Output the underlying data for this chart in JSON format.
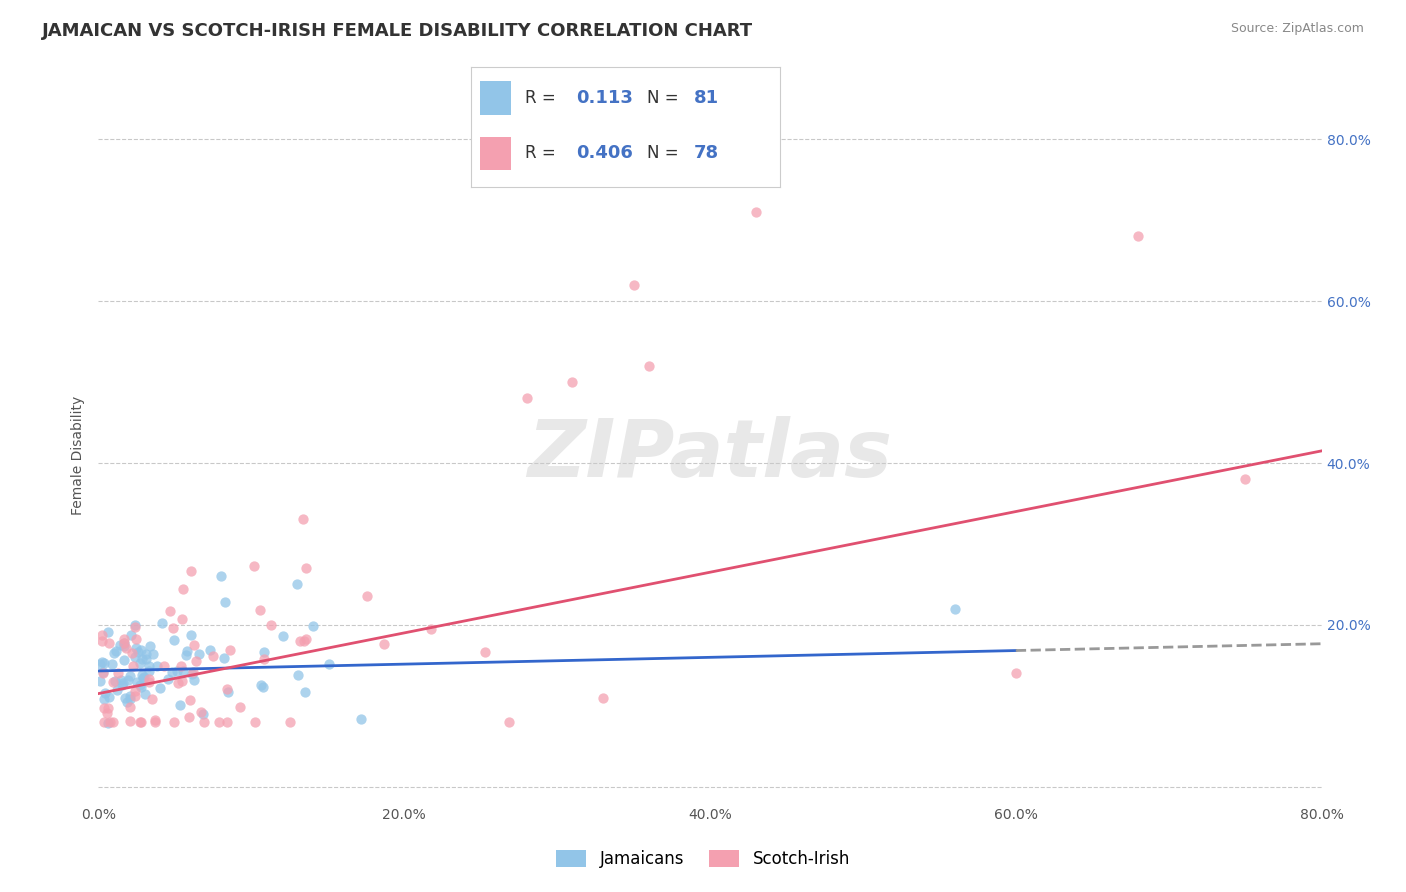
{
  "title": "JAMAICAN VS SCOTCH-IRISH FEMALE DISABILITY CORRELATION CHART",
  "source": "Source: ZipAtlas.com",
  "ylabel": "Female Disability",
  "xlim": [
    0.0,
    0.8
  ],
  "ylim": [
    -0.02,
    0.84
  ],
  "jamaican_R": 0.113,
  "jamaican_N": 81,
  "scotch_R": 0.406,
  "scotch_N": 78,
  "jamaican_color": "#92C5E8",
  "scotch_color": "#F4A0B0",
  "jamaican_line_color": "#3366CC",
  "scotch_line_color": "#E05070",
  "background_color": "#FFFFFF",
  "grid_color": "#BBBBBB",
  "title_fontsize": 13,
  "label_fontsize": 10,
  "tick_fontsize": 10,
  "right_tick_color": "#4472C4",
  "legend_label_color": "#4472C4"
}
